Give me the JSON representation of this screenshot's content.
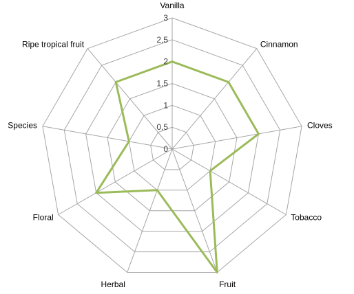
{
  "chart_data": {
    "type": "radar",
    "title": "",
    "categories": [
      "Vanilla",
      "Cinnamon",
      "Cloves",
      "Tobacco",
      "Fruit",
      "Herbal",
      "Floral",
      "Species",
      "Ripe tropical fruit"
    ],
    "series": [
      {
        "values": [
          2,
          2,
          2,
          1,
          3,
          1,
          2,
          1,
          2
        ],
        "color": "#9bbb59"
      }
    ],
    "rlim": [
      0,
      3
    ],
    "ticks": [
      "0",
      "0,5",
      "1",
      "1,5",
      "2",
      "2,5",
      "3"
    ],
    "tick_values": [
      0,
      0.5,
      1,
      1.5,
      2,
      2.5,
      3
    ],
    "grid": true,
    "legend": "none",
    "grid_color": "#a6a6a6"
  }
}
